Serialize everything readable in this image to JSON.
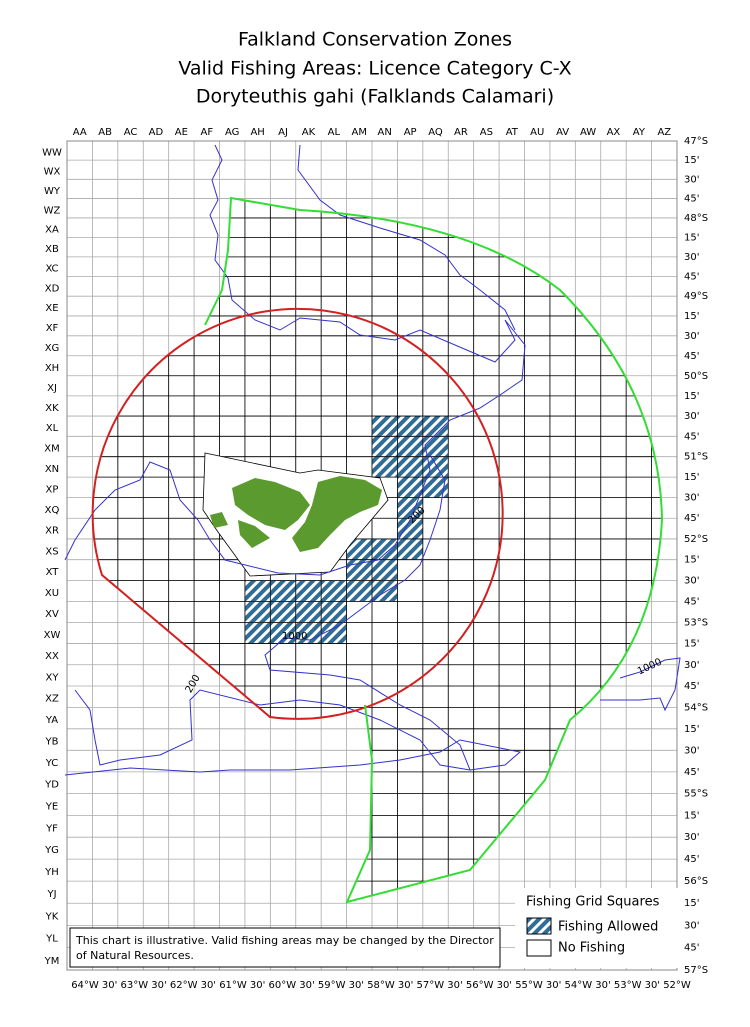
{
  "title": [
    "Falkland Conservation Zones",
    "Valid Fishing Areas: Licence Category C-X",
    "Doryteuthis gahi (Falklands Calamari)"
  ],
  "columns": [
    "AA",
    "AB",
    "AC",
    "AD",
    "AE",
    "AF",
    "AG",
    "AH",
    "AJ",
    "AK",
    "AL",
    "AM",
    "AN",
    "AP",
    "AQ",
    "AR",
    "AS",
    "AT",
    "AU",
    "AV",
    "AW",
    "AX",
    "AY",
    "AZ"
  ],
  "rows": [
    "WW",
    "WX",
    "WY",
    "WZ",
    "XA",
    "XB",
    "XC",
    "XD",
    "XE",
    "XF",
    "XG",
    "XH",
    "XJ",
    "XK",
    "XL",
    "XM",
    "XN",
    "XP",
    "XQ",
    "XR",
    "XS",
    "XT",
    "XU",
    "XV",
    "XW",
    "XX",
    "XY",
    "XZ",
    "YA",
    "YB",
    "YC",
    "YD",
    "YE",
    "YF",
    "YG",
    "YH",
    "YJ",
    "YK",
    "YL",
    "YM"
  ],
  "latitude_labels": [
    "47°S",
    "15'",
    "30'",
    "45'",
    "48°S",
    "15'",
    "30'",
    "45'",
    "49°S",
    "15'",
    "30'",
    "45'",
    "50°S",
    "15'",
    "30'",
    "45'",
    "51°S",
    "15'",
    "30'",
    "45'",
    "52°S",
    "15'",
    "30'",
    "45'",
    "53°S",
    "15'",
    "30'",
    "45'",
    "54°S",
    "15'",
    "30'",
    "45'",
    "55°S",
    "15'",
    "30'",
    "45'",
    "56°S",
    "15'",
    "30'",
    "45'",
    "57°S"
  ],
  "longitude_labels": [
    "64°W",
    "30'",
    "63°W",
    "30'",
    "62°W",
    "30'",
    "61°W",
    "30'",
    "60°W",
    "30'",
    "59°W",
    "30'",
    "58°W",
    "30'",
    "57°W",
    "30'",
    "56°W",
    "30'",
    "55°W",
    "30'",
    "54°W",
    "30'",
    "53°W",
    "30'",
    "52°W"
  ],
  "fishing_allowed": [
    [
      "XL",
      "AN"
    ],
    [
      "XL",
      "AP"
    ],
    [
      "XL",
      "AQ"
    ],
    [
      "XM",
      "AN"
    ],
    [
      "XM",
      "AP"
    ],
    [
      "XM",
      "AQ"
    ],
    [
      "XN",
      "AN"
    ],
    [
      "XN",
      "AP"
    ],
    [
      "XN",
      "AQ"
    ],
    [
      "XP",
      "AP"
    ],
    [
      "XP",
      "AQ"
    ],
    [
      "XQ",
      "AP"
    ],
    [
      "XR",
      "AP"
    ],
    [
      "XS",
      "AM"
    ],
    [
      "XS",
      "AN"
    ],
    [
      "XS",
      "AP"
    ],
    [
      "XT",
      "AM"
    ],
    [
      "XT",
      "AN"
    ],
    [
      "XU",
      "AH"
    ],
    [
      "XU",
      "AJ"
    ],
    [
      "XU",
      "AK"
    ],
    [
      "XU",
      "AL"
    ],
    [
      "XU",
      "AM"
    ],
    [
      "XU",
      "AN"
    ],
    [
      "XV",
      "AH"
    ],
    [
      "XV",
      "AJ"
    ],
    [
      "XV",
      "AK"
    ],
    [
      "XV",
      "AL"
    ],
    [
      "XW",
      "AH"
    ],
    [
      "XW",
      "AJ"
    ],
    [
      "XW",
      "AK"
    ],
    [
      "XW",
      "AL"
    ]
  ],
  "contour_labels": [
    "200",
    "1000",
    "200",
    "1000"
  ],
  "legend": {
    "title": "Fishing Grid Squares",
    "allowed": "Fishing Allowed",
    "no_fishing": "No Fishing"
  },
  "note": [
    "This chart is illustrative. Valid fishing areas may be changed by the Director",
    "of Natural Resources."
  ]
}
